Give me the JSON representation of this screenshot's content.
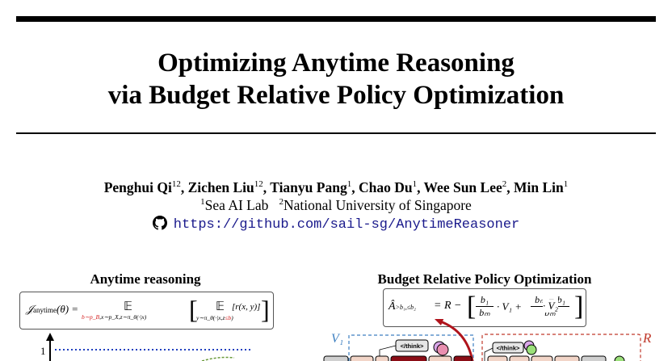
{
  "title": {
    "line1": "Optimizing Anytime Reasoning",
    "line2": "via Budget Relative Policy Optimization"
  },
  "authors": [
    {
      "name": "Penghui Qi",
      "sup": "12",
      "sep": ", "
    },
    {
      "name": "Zichen Liu",
      "sup": "12",
      "sep": ", "
    },
    {
      "name": "Tianyu Pang",
      "sup": "1",
      "sep": ", "
    },
    {
      "name": "Chao Du",
      "sup": "1",
      "sep": ", "
    },
    {
      "name": "Wee Sun Lee",
      "sup": "2",
      "sep": ", "
    },
    {
      "name": "Min Lin",
      "sup": "1",
      "sep": ""
    }
  ],
  "affiliations": [
    {
      "sup": "1",
      "name": "Sea AI Lab"
    },
    {
      "sup": "2",
      "name": "National University of Singapore"
    }
  ],
  "repo": {
    "icon": "github-icon",
    "url": "https://github.com/sail-sg/AnytimeReasoner"
  },
  "figure": {
    "left_title": "Anytime reasoning",
    "right_title": "Budget Relative Policy Optimization",
    "left_formula": {
      "lhs": "𝒥",
      "lhs_sub": "anytime",
      "theta": "(θ) =",
      "op1": "𝔼",
      "op1_sub_red": "b∼p_B",
      "op1_sub": ",x∼p_X,z∼π_θ(·|x)",
      "op2": "𝔼",
      "op2_sub": "y∼π_θ(·|x,z",
      "op2_sub_red": "≤b",
      "op2_sub_end": ")",
      "body": "r(x, y)"
    },
    "right_formula": {
      "lhs": "Â",
      "lhs_sub": ">b₁,≤b₂",
      "eq": "= R −",
      "f1_num": "b₁",
      "f1_den": "bₘ",
      "term1": "· V₁ +",
      "f2_num": "bₘ − b₁",
      "f2_den": "bₘ",
      "term2": "· V₂"
    },
    "y_tick_1": "1",
    "v1_label": "V₁",
    "r_label": "R",
    "think_tag": "</think>",
    "colors": {
      "dotted_blue": "#1f3fbf",
      "dashed_red": "#c0392b",
      "dashed_blue": "#3d7fc1",
      "arrow_red": "#b0141c",
      "token_fill": "#f2d5c8",
      "token_dark": "#8b0d16",
      "token_gray": "#d0d0d0"
    }
  }
}
